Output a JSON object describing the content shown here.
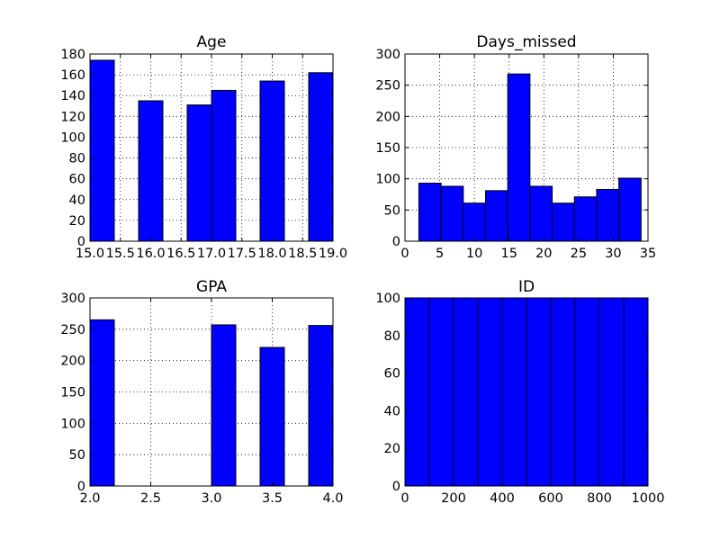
{
  "chart_data": [
    {
      "type": "bar",
      "title": "Age",
      "xlim": [
        15.0,
        19.0
      ],
      "ylim": [
        0,
        180
      ],
      "xticks": [
        15.0,
        15.5,
        16.0,
        16.5,
        17.0,
        17.5,
        18.0,
        18.5,
        19.0
      ],
      "xtick_labels": [
        "15.0",
        "15.5",
        "16.0",
        "16.5",
        "17.0",
        "17.5",
        "18.0",
        "18.5",
        "19.0"
      ],
      "yticks": [
        0,
        20,
        40,
        60,
        80,
        100,
        120,
        140,
        160,
        180
      ],
      "ytick_labels": [
        "0",
        "20",
        "40",
        "60",
        "80",
        "100",
        "120",
        "140",
        "160",
        "180"
      ],
      "bins": [
        {
          "x0": 15.0,
          "x1": 15.4,
          "value": 174
        },
        {
          "x0": 15.4,
          "x1": 15.8,
          "value": 0
        },
        {
          "x0": 15.8,
          "x1": 16.2,
          "value": 135
        },
        {
          "x0": 16.2,
          "x1": 16.6,
          "value": 0
        },
        {
          "x0": 16.6,
          "x1": 17.0,
          "value": 131
        },
        {
          "x0": 17.0,
          "x1": 17.4,
          "value": 145
        },
        {
          "x0": 17.4,
          "x1": 17.8,
          "value": 0
        },
        {
          "x0": 17.8,
          "x1": 18.2,
          "value": 154
        },
        {
          "x0": 18.2,
          "x1": 18.6,
          "value": 0
        },
        {
          "x0": 18.6,
          "x1": 19.0,
          "value": 162
        }
      ],
      "grid": true,
      "bar_color": "#0000ff"
    },
    {
      "type": "bar",
      "title": "Days_missed",
      "xlim": [
        0,
        35
      ],
      "ylim": [
        0,
        300
      ],
      "xticks": [
        0,
        5,
        10,
        15,
        20,
        25,
        30,
        35
      ],
      "xtick_labels": [
        "0",
        "5",
        "10",
        "15",
        "20",
        "25",
        "30",
        "35"
      ],
      "yticks": [
        0,
        50,
        100,
        150,
        200,
        250,
        300
      ],
      "ytick_labels": [
        "0",
        "50",
        "100",
        "150",
        "200",
        "250",
        "300"
      ],
      "bins": [
        {
          "x0": 2.0,
          "x1": 5.2,
          "value": 93
        },
        {
          "x0": 5.2,
          "x1": 8.4,
          "value": 88
        },
        {
          "x0": 8.4,
          "x1": 11.6,
          "value": 61
        },
        {
          "x0": 11.6,
          "x1": 14.8,
          "value": 81
        },
        {
          "x0": 14.8,
          "x1": 18.0,
          "value": 268
        },
        {
          "x0": 18.0,
          "x1": 21.2,
          "value": 88
        },
        {
          "x0": 21.2,
          "x1": 24.4,
          "value": 61
        },
        {
          "x0": 24.4,
          "x1": 27.6,
          "value": 71
        },
        {
          "x0": 27.6,
          "x1": 30.8,
          "value": 83
        },
        {
          "x0": 30.8,
          "x1": 34.0,
          "value": 101
        }
      ],
      "grid": true,
      "bar_color": "#0000ff"
    },
    {
      "type": "bar",
      "title": "GPA",
      "xlim": [
        2.0,
        4.0
      ],
      "ylim": [
        0,
        300
      ],
      "xticks": [
        2.0,
        2.5,
        3.0,
        3.5,
        4.0
      ],
      "xtick_labels": [
        "2.0",
        "2.5",
        "3.0",
        "3.5",
        "4.0"
      ],
      "yticks": [
        0,
        50,
        100,
        150,
        200,
        250,
        300
      ],
      "ytick_labels": [
        "0",
        "50",
        "100",
        "150",
        "200",
        "250",
        "300"
      ],
      "bins": [
        {
          "x0": 2.0,
          "x1": 2.2,
          "value": 265
        },
        {
          "x0": 2.2,
          "x1": 2.4,
          "value": 0
        },
        {
          "x0": 2.4,
          "x1": 2.6,
          "value": 0
        },
        {
          "x0": 2.6,
          "x1": 2.8,
          "value": 0
        },
        {
          "x0": 2.8,
          "x1": 3.0,
          "value": 0
        },
        {
          "x0": 3.0,
          "x1": 3.2,
          "value": 257
        },
        {
          "x0": 3.2,
          "x1": 3.4,
          "value": 0
        },
        {
          "x0": 3.4,
          "x1": 3.6,
          "value": 221
        },
        {
          "x0": 3.6,
          "x1": 3.8,
          "value": 0
        },
        {
          "x0": 3.8,
          "x1": 4.0,
          "value": 256
        }
      ],
      "grid": true,
      "bar_color": "#0000ff"
    },
    {
      "type": "bar",
      "title": "ID",
      "xlim": [
        0,
        1000
      ],
      "ylim": [
        0,
        100
      ],
      "xticks": [
        0,
        200,
        400,
        600,
        800,
        1000
      ],
      "xtick_labels": [
        "0",
        "200",
        "400",
        "600",
        "800",
        "1000"
      ],
      "yticks": [
        0,
        20,
        40,
        60,
        80,
        100
      ],
      "ytick_labels": [
        "0",
        "20",
        "40",
        "60",
        "80",
        "100"
      ],
      "bins": [
        {
          "x0": 0,
          "x1": 100,
          "value": 100
        },
        {
          "x0": 100,
          "x1": 200,
          "value": 100
        },
        {
          "x0": 200,
          "x1": 300,
          "value": 100
        },
        {
          "x0": 300,
          "x1": 400,
          "value": 100
        },
        {
          "x0": 400,
          "x1": 500,
          "value": 100
        },
        {
          "x0": 500,
          "x1": 600,
          "value": 100
        },
        {
          "x0": 600,
          "x1": 700,
          "value": 100
        },
        {
          "x0": 700,
          "x1": 800,
          "value": 100
        },
        {
          "x0": 800,
          "x1": 900,
          "value": 100
        },
        {
          "x0": 900,
          "x1": 1000,
          "value": 100
        }
      ],
      "grid": true,
      "bar_color": "#0000ff"
    }
  ]
}
